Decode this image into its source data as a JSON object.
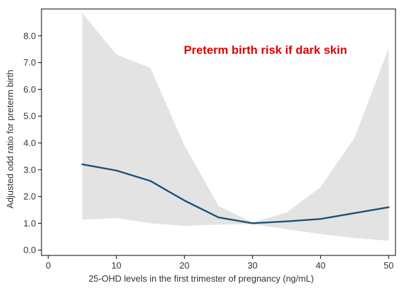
{
  "chart_data": {
    "type": "line",
    "title": "Preterm birth risk if dark skin",
    "xlabel": "25-OHD levels in the first trimester of pregnancy (ng/mL)",
    "ylabel": "Adjusted odd ratio for preterm birth",
    "xlim": [
      -1,
      51
    ],
    "ylim": [
      -0.2,
      9.0
    ],
    "x_ticks": [
      0,
      10,
      20,
      30,
      40,
      50
    ],
    "x_tick_labels": [
      "0",
      "10",
      "20",
      "30",
      "40",
      "50"
    ],
    "y_ticks": [
      0,
      1,
      2,
      3,
      4,
      5,
      6,
      7,
      8
    ],
    "y_tick_labels": [
      "0.0",
      "1.0",
      "2.0",
      "3.0",
      "4.0",
      "5.0",
      "6.0",
      "7.0",
      "8.0"
    ],
    "grid": false,
    "legend": "none",
    "series": [
      {
        "x": [
          5,
          10,
          15,
          20,
          25,
          30,
          35,
          40,
          45,
          50
        ],
        "values": [
          3.2,
          2.97,
          2.58,
          1.85,
          1.22,
          1.0,
          1.07,
          1.16,
          1.38,
          1.6
        ],
        "ci_upper": [
          8.85,
          7.3,
          6.8,
          3.9,
          1.65,
          1.03,
          1.4,
          2.35,
          4.2,
          7.55
        ],
        "ci_lower": [
          1.13,
          1.2,
          1.0,
          0.9,
          0.95,
          0.97,
          0.78,
          0.6,
          0.45,
          0.35
        ]
      }
    ],
    "colors": {
      "line": "#1d4f73",
      "band": "#e3e3e3",
      "title": "#e00000",
      "text": "#333333",
      "axis": "#000000"
    }
  }
}
